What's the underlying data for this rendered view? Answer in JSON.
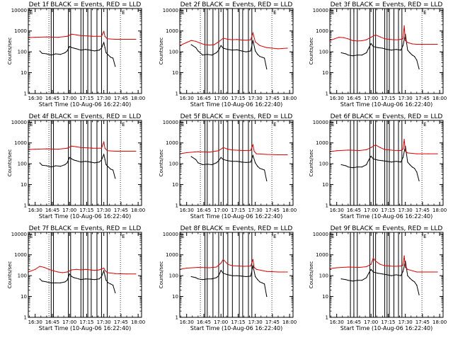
{
  "figure": {
    "background": "#ffffff",
    "colors": {
      "events": "#000000",
      "lld": "#e00000",
      "axes": "#000000"
    },
    "shared": {
      "xlabel": "Start Time (10-Aug-06 16:22:40)",
      "ylabel": "Counts/sec",
      "x_ticks": [
        "16:30",
        "16:45",
        "17:00",
        "17:15",
        "17:30",
        "17:45",
        "18:00"
      ],
      "x_tick_minutes": [
        30,
        45,
        60,
        75,
        90,
        105,
        120
      ],
      "xlim_minutes_after_16h": [
        24,
        123
      ],
      "y_ticks": [
        "1",
        "10",
        "100",
        "1000",
        "10000"
      ],
      "y_tick_values": [
        1,
        10,
        100,
        1000,
        10000
      ],
      "ylim": [
        1,
        12000
      ],
      "y_scale": "log",
      "dotted_vlines_minutes": [
        42,
        104.5
      ],
      "corner_markers": {
        "top_left": "E",
        "top_right": "E"
      }
    }
  },
  "chart_data": [
    {
      "type": "line",
      "title": "Det 1f BLACK = Events, RED = LLD",
      "attenuator_lines_minutes": [
        44,
        46,
        59,
        61,
        70,
        72,
        76,
        79,
        84,
        88,
        93
      ],
      "series": [
        {
          "color": "#000000",
          "x": [
            34,
            36,
            40,
            44,
            48,
            52,
            56,
            58,
            60,
            62,
            64,
            66,
            68,
            70,
            74,
            78,
            82,
            86,
            88,
            90,
            91,
            92,
            94,
            96,
            98,
            100
          ],
          "values": [
            110,
            85,
            80,
            70,
            80,
            75,
            90,
            110,
            180,
            160,
            150,
            140,
            130,
            120,
            130,
            120,
            110,
            120,
            150,
            280,
            160,
            90,
            70,
            55,
            50,
            20
          ]
        },
        {
          "color": "#e00000",
          "x": [
            24,
            30,
            40,
            50,
            58,
            62,
            66,
            70,
            80,
            88,
            90,
            91,
            93,
            100,
            110,
            118
          ],
          "values": [
            480,
            500,
            520,
            500,
            560,
            700,
            650,
            600,
            560,
            560,
            950,
            550,
            420,
            400,
            400,
            400
          ]
        }
      ]
    },
    {
      "type": "line",
      "title": "Det 2f BLACK = Events, RED = LLD",
      "attenuator_lines_minutes": [
        46,
        48,
        53,
        58,
        62,
        66,
        70,
        76,
        79,
        84,
        87
      ],
      "series": [
        {
          "color": "#000000",
          "x": [
            34,
            38,
            40,
            44,
            48,
            52,
            56,
            58,
            60,
            62,
            66,
            70,
            74,
            78,
            82,
            86,
            88,
            90,
            92,
            94,
            96,
            98,
            100
          ],
          "values": [
            220,
            160,
            110,
            70,
            75,
            70,
            90,
            120,
            200,
            150,
            130,
            120,
            125,
            110,
            100,
            110,
            350,
            110,
            75,
            60,
            55,
            50,
            15
          ]
        },
        {
          "color": "#e00000",
          "x": [
            24,
            30,
            34,
            38,
            42,
            46,
            50,
            54,
            58,
            62,
            66,
            70,
            74,
            78,
            82,
            86,
            88,
            90,
            94,
            100,
            110,
            118
          ],
          "values": [
            200,
            280,
            350,
            320,
            260,
            220,
            210,
            220,
            300,
            450,
            400,
            380,
            390,
            370,
            360,
            380,
            800,
            300,
            200,
            160,
            140,
            150
          ]
        }
      ]
    },
    {
      "type": "line",
      "title": "Det 3f BLACK = Events, RED = LLD",
      "attenuator_lines_minutes": [
        42,
        45,
        48,
        59,
        62,
        64,
        72,
        74,
        76,
        80,
        84,
        87
      ],
      "series": [
        {
          "color": "#000000",
          "x": [
            34,
            38,
            40,
            44,
            48,
            52,
            56,
            58,
            60,
            62,
            66,
            70,
            74,
            78,
            82,
            86,
            88,
            90,
            92,
            94,
            96,
            98,
            100,
            102
          ],
          "values": [
            90,
            80,
            70,
            65,
            70,
            70,
            90,
            150,
            250,
            180,
            160,
            150,
            130,
            120,
            130,
            120,
            200,
            700,
            120,
            90,
            70,
            60,
            40,
            15
          ]
        },
        {
          "color": "#e00000",
          "x": [
            24,
            28,
            32,
            36,
            40,
            44,
            48,
            52,
            56,
            60,
            64,
            68,
            72,
            76,
            80,
            84,
            88,
            89,
            90,
            92,
            96,
            100,
            110,
            118
          ],
          "values": [
            350,
            420,
            500,
            480,
            420,
            350,
            330,
            340,
            380,
            500,
            650,
            520,
            420,
            400,
            380,
            380,
            420,
            1800,
            350,
            280,
            240,
            230,
            230,
            230
          ]
        }
      ]
    },
    {
      "type": "line",
      "title": "Det 4f BLACK = Events, RED = LLD",
      "attenuator_lines_minutes": [
        44,
        46,
        59,
        61,
        70,
        72,
        76,
        79,
        84,
        88,
        93
      ],
      "series": [
        {
          "color": "#000000",
          "x": [
            34,
            36,
            40,
            44,
            48,
            52,
            56,
            58,
            60,
            62,
            64,
            66,
            68,
            70,
            74,
            78,
            82,
            86,
            88,
            90,
            91,
            92,
            94,
            96,
            98,
            100
          ],
          "values": [
            110,
            85,
            80,
            70,
            80,
            75,
            90,
            110,
            200,
            170,
            150,
            140,
            130,
            120,
            130,
            120,
            110,
            120,
            150,
            280,
            160,
            90,
            70,
            55,
            50,
            20
          ]
        },
        {
          "color": "#e00000",
          "x": [
            24,
            30,
            40,
            50,
            58,
            62,
            66,
            70,
            80,
            88,
            90,
            91,
            93,
            100,
            110,
            118
          ],
          "values": [
            480,
            500,
            520,
            500,
            560,
            700,
            650,
            600,
            560,
            560,
            1100,
            550,
            420,
            400,
            400,
            400
          ]
        }
      ]
    },
    {
      "type": "line",
      "title": "Det 5f BLACK = Events, RED = LLD",
      "attenuator_lines_minutes": [
        46,
        48,
        53,
        58,
        62,
        66,
        70,
        76,
        79,
        84,
        87
      ],
      "series": [
        {
          "color": "#000000",
          "x": [
            34,
            38,
            40,
            44,
            48,
            52,
            56,
            58,
            60,
            62,
            66,
            70,
            74,
            78,
            82,
            86,
            88,
            90,
            92,
            94,
            96,
            98,
            100
          ],
          "values": [
            220,
            160,
            110,
            90,
            95,
            90,
            110,
            140,
            200,
            160,
            140,
            130,
            130,
            120,
            115,
            120,
            250,
            110,
            75,
            60,
            55,
            50,
            15
          ]
        },
        {
          "color": "#e00000",
          "x": [
            24,
            30,
            40,
            50,
            58,
            62,
            66,
            70,
            80,
            86,
            88,
            89,
            91,
            100,
            110,
            118
          ],
          "values": [
            300,
            340,
            380,
            360,
            420,
            600,
            500,
            460,
            430,
            440,
            800,
            400,
            300,
            280,
            270,
            270
          ]
        }
      ]
    },
    {
      "type": "line",
      "title": "Det 6f BLACK = Events, RED = LLD",
      "attenuator_lines_minutes": [
        42,
        45,
        48,
        59,
        62,
        64,
        72,
        74,
        76,
        80,
        84,
        87
      ],
      "series": [
        {
          "color": "#000000",
          "x": [
            34,
            38,
            40,
            44,
            48,
            52,
            56,
            58,
            60,
            62,
            66,
            70,
            74,
            78,
            82,
            86,
            88,
            90,
            92,
            94,
            96,
            98,
            100,
            102
          ],
          "values": [
            90,
            80,
            70,
            65,
            70,
            70,
            90,
            150,
            230,
            170,
            150,
            140,
            130,
            120,
            130,
            120,
            200,
            700,
            120,
            90,
            70,
            60,
            40,
            15
          ]
        },
        {
          "color": "#e00000",
          "x": [
            24,
            30,
            40,
            50,
            56,
            60,
            64,
            68,
            72,
            80,
            86,
            88,
            89,
            90,
            92,
            100,
            110,
            118
          ],
          "values": [
            380,
            420,
            450,
            430,
            470,
            600,
            800,
            600,
            480,
            440,
            430,
            500,
            1500,
            400,
            330,
            300,
            300,
            300
          ]
        }
      ]
    },
    {
      "type": "line",
      "title": "Det 7f BLACK = Events, RED = LLD",
      "attenuator_lines_minutes": [
        44,
        46,
        59,
        61,
        70,
        72,
        76,
        79,
        84,
        88,
        93
      ],
      "series": [
        {
          "color": "#000000",
          "x": [
            34,
            36,
            40,
            44,
            48,
            52,
            56,
            58,
            60,
            62,
            64,
            66,
            68,
            70,
            74,
            78,
            82,
            86,
            88,
            90,
            91,
            92,
            94,
            96,
            98,
            100
          ],
          "values": [
            70,
            55,
            50,
            45,
            45,
            45,
            50,
            60,
            120,
            90,
            80,
            75,
            70,
            65,
            70,
            68,
            65,
            70,
            90,
            170,
            100,
            60,
            45,
            40,
            35,
            15
          ]
        },
        {
          "color": "#e00000",
          "x": [
            24,
            30,
            34,
            38,
            42,
            46,
            50,
            54,
            58,
            62,
            66,
            70,
            74,
            78,
            82,
            86,
            90,
            91,
            93,
            100,
            110,
            118
          ],
          "values": [
            150,
            200,
            280,
            250,
            200,
            170,
            150,
            140,
            150,
            190,
            200,
            190,
            200,
            190,
            180,
            190,
            230,
            180,
            140,
            125,
            120,
            120
          ]
        }
      ]
    },
    {
      "type": "line",
      "title": "Det 8f BLACK = Events, RED = LLD",
      "attenuator_lines_minutes": [
        46,
        48,
        53,
        58,
        62,
        66,
        70,
        76,
        79,
        84,
        87
      ],
      "series": [
        {
          "color": "#000000",
          "x": [
            34,
            38,
            40,
            44,
            48,
            52,
            56,
            58,
            60,
            62,
            66,
            70,
            74,
            78,
            82,
            86,
            88,
            90,
            92,
            94,
            96,
            98,
            100
          ],
          "values": [
            90,
            80,
            70,
            65,
            70,
            70,
            80,
            100,
            180,
            130,
            110,
            100,
            100,
            95,
            90,
            95,
            300,
            90,
            65,
            50,
            45,
            40,
            10
          ]
        },
        {
          "color": "#e00000",
          "x": [
            24,
            30,
            40,
            50,
            56,
            60,
            62,
            66,
            70,
            80,
            86,
            88,
            89,
            91,
            100,
            110,
            118
          ],
          "values": [
            200,
            230,
            250,
            240,
            260,
            400,
            600,
            350,
            300,
            280,
            290,
            600,
            250,
            200,
            160,
            150,
            150
          ]
        }
      ]
    },
    {
      "type": "line",
      "title": "Det 9f BLACK = Events, RED = LLD",
      "attenuator_lines_minutes": [
        42,
        45,
        48,
        59,
        62,
        64,
        72,
        74,
        76,
        80,
        84,
        87
      ],
      "series": [
        {
          "color": "#000000",
          "x": [
            34,
            38,
            40,
            44,
            48,
            52,
            56,
            58,
            60,
            62,
            66,
            70,
            74,
            78,
            82,
            86,
            88,
            90,
            92,
            94,
            96,
            98,
            100,
            102
          ],
          "values": [
            70,
            65,
            60,
            55,
            60,
            60,
            80,
            130,
            200,
            150,
            130,
            120,
            110,
            100,
            110,
            100,
            160,
            500,
            100,
            75,
            60,
            50,
            35,
            12
          ]
        },
        {
          "color": "#e00000",
          "x": [
            24,
            30,
            40,
            50,
            56,
            60,
            62,
            64,
            68,
            72,
            80,
            86,
            88,
            89,
            90,
            92,
            100,
            110,
            118
          ],
          "values": [
            220,
            240,
            260,
            250,
            270,
            350,
            700,
            500,
            350,
            300,
            280,
            290,
            320,
            900,
            250,
            200,
            150,
            150,
            150
          ]
        }
      ]
    }
  ]
}
